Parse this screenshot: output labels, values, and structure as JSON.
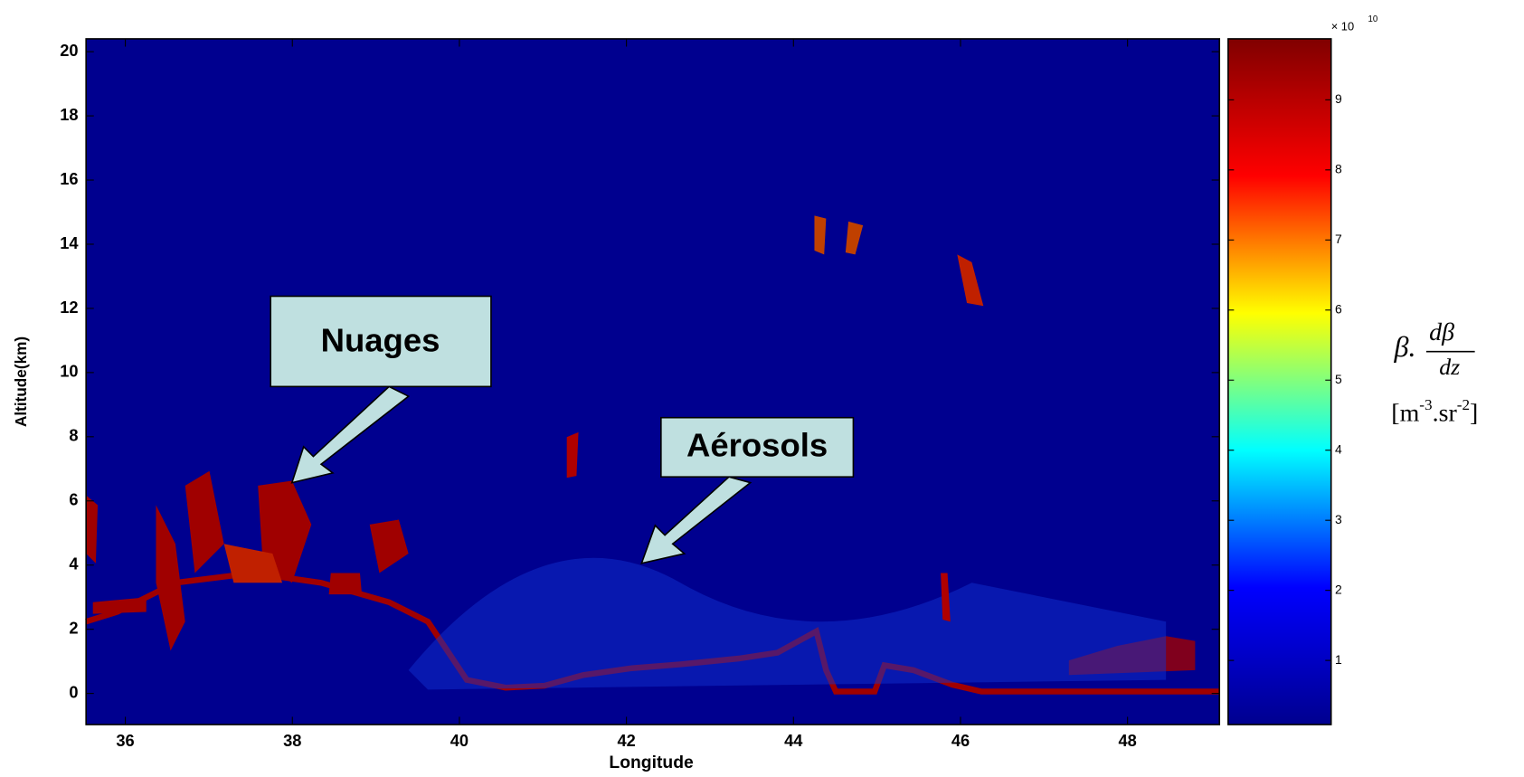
{
  "chart_data": {
    "type": "heatmap",
    "x_label": "Longitude",
    "y_label": "Altitude(km)",
    "xlim": [
      35.53,
      49.1
    ],
    "xticks": [
      36,
      38,
      40,
      42,
      44,
      46,
      48
    ],
    "ylim": [
      -0.97,
      20.4
    ],
    "yticks": [
      0,
      2,
      4,
      6,
      8,
      10,
      12,
      14,
      16,
      18,
      20
    ],
    "background_color": "#00008f",
    "colormap": [
      "#00008f",
      "#0000ff",
      "#00ffff",
      "#ffff00",
      "#ff0000",
      "#800000"
    ],
    "colorbar": {
      "lim": [
        0.085,
        9.87
      ],
      "ticks": [
        1,
        2,
        3,
        4,
        5,
        6,
        7,
        8,
        9
      ],
      "multiplier": "× 10",
      "exponent": "10",
      "label": {
        "beta": "β.",
        "numerator": "dβ",
        "denominator": "dz",
        "unit_open": "[m",
        "unit_exp1": "-3",
        "unit_mid": ".sr",
        "unit_exp2": "-2",
        "unit_close": "]"
      }
    },
    "annotations": [
      {
        "text": "Nuages"
      },
      {
        "text": "Aérosols"
      }
    ]
  }
}
